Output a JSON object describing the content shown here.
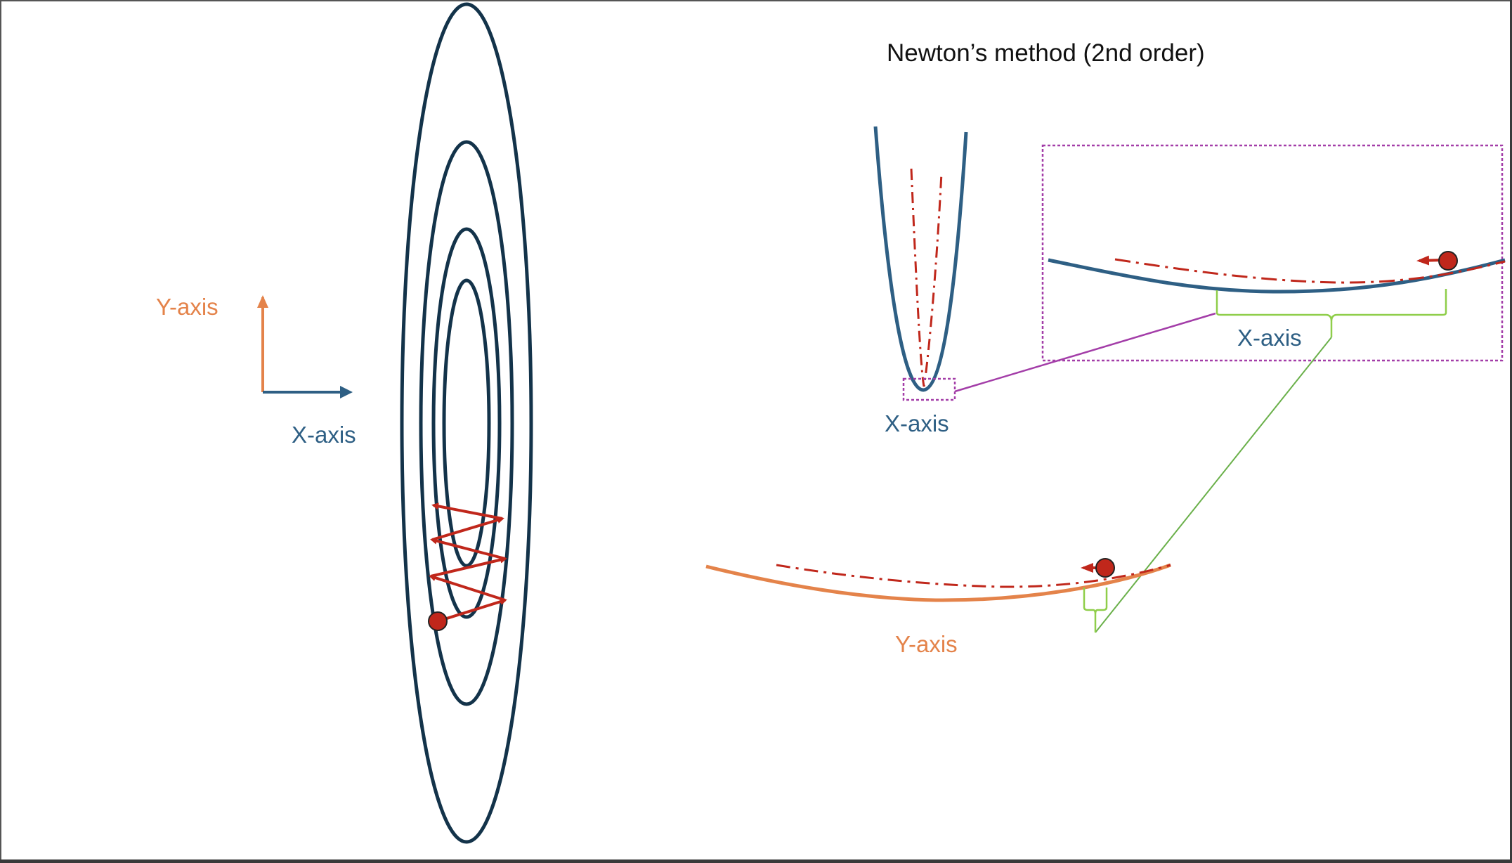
{
  "title": "Newton’s method (2nd order)",
  "legend": {
    "y_axis_label": "Y-axis",
    "x_axis_label": "X-axis"
  },
  "x_curve_label": "X-axis",
  "x_zoom_label": "X-axis",
  "y_curve_label": "Y-axis",
  "colors": {
    "contour": "#13334a",
    "x_axis": "#2e5f84",
    "y_axis": "#e4834a",
    "step": "#c0271b",
    "zoom_box": "#a33da8",
    "brace": "#8fce4a"
  }
}
